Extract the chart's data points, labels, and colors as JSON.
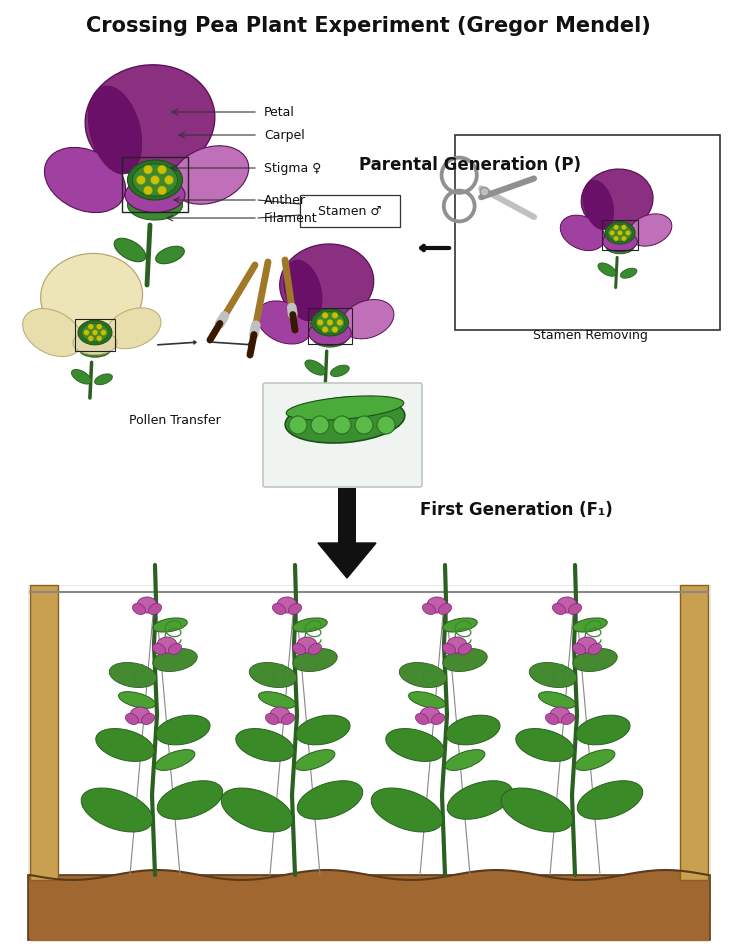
{
  "title": "Crossing Pea Plant Experiment (Gregor Mendel)",
  "background_color": "#ffffff",
  "fig_width": 7.36,
  "fig_height": 9.46,
  "title_fontsize": 15,
  "title_fontweight": "bold",
  "parental_label": "Parental Generation (P)",
  "first_gen_label": "First Generation (F₁)",
  "pollen_transfer_label": "Pollen Transfer",
  "stamen_removing_label": "Stamen Removing",
  "annotation_labels": [
    "Petal",
    "Carpel",
    "Stigma ♀",
    "Anther",
    "Filament"
  ],
  "stamen_label": "Stamen ♂",
  "colors": {
    "purple_dark": "#8B3080",
    "purple_mid": "#A040A0",
    "purple_light": "#C070B8",
    "cream_petal": "#EDE4B8",
    "cream_petal_edge": "#B8A870",
    "green_dark": "#2A6020",
    "green_mid": "#3A8A30",
    "green_light": "#58A848",
    "yellow_dot": "#C8C000",
    "brown_stem": "#7A5010",
    "silver": "#C0C0C0",
    "silver_dark": "#909090",
    "wood_light": "#C8A050",
    "wood_dark": "#8A6020",
    "soil": "#8B5E3C",
    "soil_dark": "#5a3a1a",
    "text_dark": "#111111",
    "line_dark": "#333333",
    "box_bg": "#F5F5F5"
  }
}
